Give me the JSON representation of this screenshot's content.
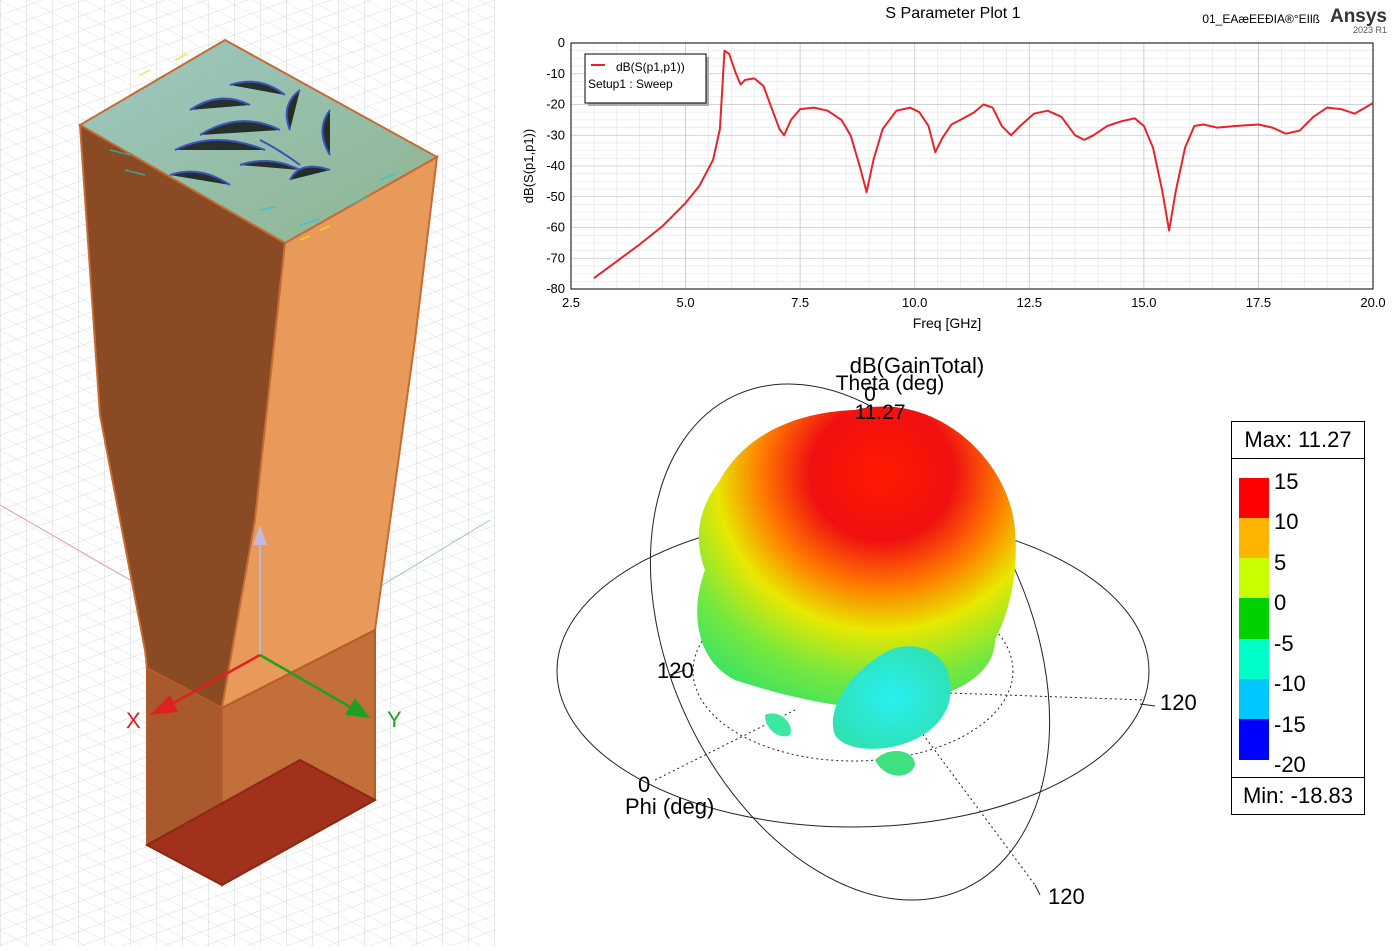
{
  "geometry": {
    "axis_x_label": "X",
    "axis_y_label": "Y"
  },
  "splot": {
    "title": "S Parameter Plot 1",
    "file_label": "01_EAæEEÐIA®°EIlß",
    "brand": "Ansys",
    "version": "2023 R1",
    "legend": {
      "trace": "dB(S(p1,p1))",
      "setup": "Setup1 : Sweep"
    }
  },
  "chart_data": {
    "type": "line",
    "title": "S Parameter Plot 1",
    "xlabel": "Freq [GHz]",
    "ylabel": "dB(S(p1,p1))",
    "xlim": [
      2.5,
      20.0
    ],
    "ylim": [
      -80,
      0
    ],
    "x_ticks": [
      "2.5",
      "5.0",
      "7.5",
      "10.0",
      "12.5",
      "15.0",
      "17.5",
      "20.0"
    ],
    "y_ticks": [
      "0",
      "-10",
      "-20",
      "-30",
      "-40",
      "-50",
      "-60",
      "-70",
      "-80"
    ],
    "grid": true,
    "legend_position": "top-left",
    "series": [
      {
        "name": "dB(S(p1,p1))",
        "color": "#e8242b",
        "x": [
          3.0,
          3.5,
          4.0,
          4.5,
          5.0,
          5.3,
          5.6,
          5.75,
          5.85,
          5.95,
          6.1,
          6.2,
          6.3,
          6.5,
          6.7,
          6.9,
          7.05,
          7.15,
          7.3,
          7.5,
          7.8,
          8.1,
          8.4,
          8.6,
          8.8,
          8.95,
          9.1,
          9.3,
          9.6,
          9.9,
          10.1,
          10.3,
          10.45,
          10.6,
          10.8,
          11.0,
          11.3,
          11.5,
          11.7,
          11.9,
          12.1,
          12.3,
          12.6,
          12.9,
          13.2,
          13.5,
          13.7,
          13.9,
          14.2,
          14.5,
          14.8,
          15.0,
          15.2,
          15.4,
          15.55,
          15.7,
          15.9,
          16.1,
          16.3,
          16.6,
          17.0,
          17.5,
          17.8,
          18.1,
          18.4,
          18.7,
          19.0,
          19.3,
          19.6,
          20.0
        ],
        "values": [
          -76.5,
          -71,
          -65.5,
          -59.5,
          -52,
          -46.5,
          -38,
          -28,
          -2.5,
          -3.5,
          -10,
          -13.5,
          -12,
          -11.5,
          -14,
          -22,
          -28,
          -30,
          -25,
          -21.5,
          -21,
          -22,
          -25,
          -30,
          -40,
          -48.5,
          -38,
          -28,
          -22,
          -21,
          -22.5,
          -27,
          -35.5,
          -31,
          -26.5,
          -25,
          -22.5,
          -20,
          -21,
          -27,
          -30,
          -27,
          -23,
          -22,
          -24,
          -30,
          -31.5,
          -30,
          -27,
          -25.5,
          -24.5,
          -27,
          -34,
          -48,
          -61,
          -48,
          -34,
          -27,
          -26.5,
          -27.5,
          -27,
          -26.5,
          -27.5,
          -29.5,
          -28.5,
          -24,
          -21,
          -21.5,
          -23,
          -19.5
        ]
      }
    ]
  },
  "radiation": {
    "title": "dB(GainTotal)",
    "theta_label": "Theta (deg)",
    "theta_zero": "0",
    "peak_value": "11.27",
    "phi_label": "Phi (deg)",
    "phi_zero": "0",
    "ring_labels": [
      "120",
      "120",
      "120"
    ]
  },
  "colorbar": {
    "max_label": "Max: 11.27",
    "min_label": "Min: -18.83",
    "ticks": [
      "15",
      "10",
      "5",
      "0",
      "-5",
      "-10",
      "-15",
      "-20"
    ],
    "colors": [
      "#ff0000",
      "#ffb400",
      "#c8ff00",
      "#00d200",
      "#00ffc8",
      "#00c8ff",
      "#0000ff"
    ]
  }
}
